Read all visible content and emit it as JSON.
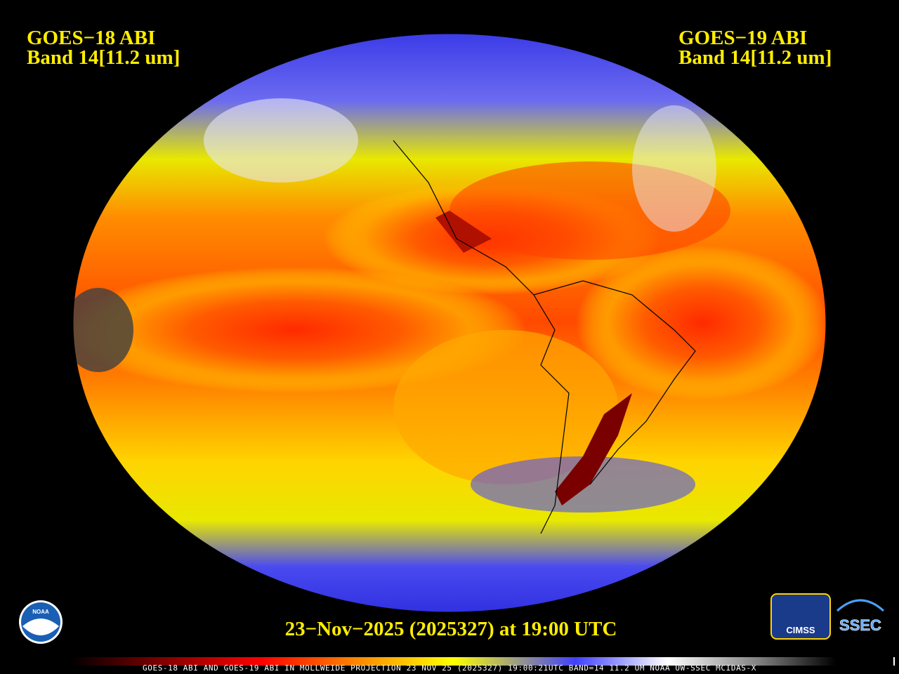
{
  "header": {
    "left": {
      "satellite": "GOES−18 ABI",
      "band": "Band 14[11.2 um]"
    },
    "right": {
      "satellite": "GOES−19 ABI",
      "band": "Band 14[11.2 um]"
    }
  },
  "timestamp": "23−Nov−2025 (2025327) at 19:00 UTC",
  "footer": "GOES-18 ABI AND GOES-19 ABI IN MOLLWEIDE PROJECTION 23 NOV 25 (2025327) 19:00:21UTC BAND=14 11.2 UM NOAA UW-SSEC MCIDAS-X",
  "logos": {
    "noaa": "NOAA",
    "cimss": "CIMSS",
    "ssec": "SSEC"
  }
}
